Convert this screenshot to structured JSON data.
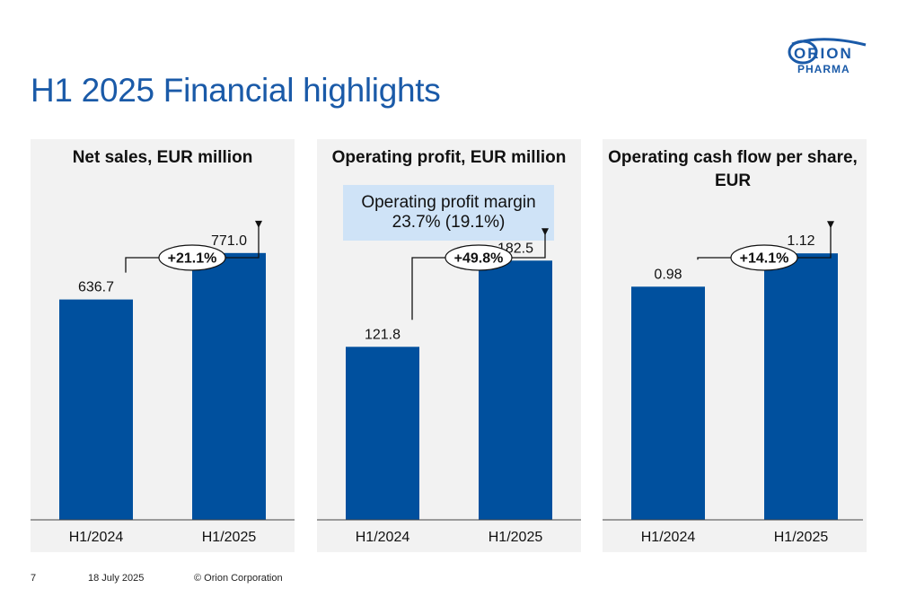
{
  "page": {
    "title": "H1 2025 Financial highlights",
    "footer": {
      "page_number": "7",
      "date": "18 July 2025",
      "copyright": "© Orion Corporation"
    },
    "logo": {
      "line1": "ORION",
      "line2": "PHARMA"
    }
  },
  "colors": {
    "bar": "#00509e",
    "title": "#1a5aa8",
    "panel": "#f2f2f2",
    "note_box": "#cfe3f7"
  },
  "chart_data": [
    {
      "type": "bar",
      "title": [
        "Net sales, EUR  million"
      ],
      "categories": [
        "H1/2024",
        "H1/2025"
      ],
      "values": [
        636.7,
        771.0
      ],
      "labels": [
        "636.7",
        "771.0"
      ],
      "change": "+21.1%",
      "ylim": [
        0,
        1100
      ]
    },
    {
      "type": "bar",
      "title": [
        "Operating profit, EUR million"
      ],
      "note": [
        "Operating profit margin",
        "23.7% (19.1%)"
      ],
      "categories": [
        "H1/2024",
        "H1/2025"
      ],
      "values": [
        121.8,
        182.5
      ],
      "labels": [
        "121.8",
        "182.5"
      ],
      "change": "+49.8%",
      "ylim": [
        0,
        268
      ]
    },
    {
      "type": "bar",
      "title": [
        "Operating cash flow per share,",
        "EUR"
      ],
      "categories": [
        "H1/2024",
        "H1/2025"
      ],
      "values": [
        0.98,
        1.12
      ],
      "labels": [
        "0.98",
        "1.12"
      ],
      "change": "+14.1%",
      "ylim": [
        0,
        1.6
      ]
    }
  ]
}
